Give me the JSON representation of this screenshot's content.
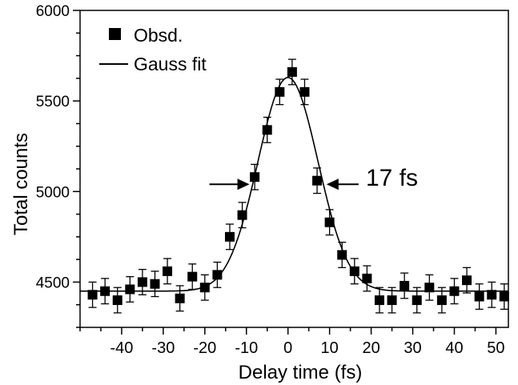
{
  "chart_data": {
    "type": "scatter",
    "xlabel": "Delay time (fs)",
    "ylabel": "Total counts",
    "xlim": [
      -50,
      53
    ],
    "ylim": [
      4250,
      6000
    ],
    "x_ticks": [
      -40,
      -30,
      -20,
      -10,
      0,
      10,
      20,
      30,
      40,
      50
    ],
    "y_ticks": [
      4500,
      5000,
      5500,
      6000
    ],
    "x_tick_labels": [
      "-40",
      "-30",
      "-20",
      "-10",
      "0",
      "10",
      "20",
      "30",
      "40",
      "50"
    ],
    "y_tick_labels": [
      "4500",
      "5000",
      "5500",
      "6000"
    ],
    "x_minor_step": 5,
    "y_minor_step": 125,
    "grid": false,
    "legend": {
      "position": "top-left",
      "entries": [
        {
          "label": "Obsd.",
          "marker": "square"
        },
        {
          "label": "Gauss fit",
          "marker": "line"
        }
      ]
    },
    "annotation": {
      "text": "17 fs",
      "type": "fwhm-arrows",
      "y": 5040,
      "left_x": -8.5,
      "right_x": 8.5
    },
    "series": [
      {
        "name": "Obsd.",
        "kind": "points",
        "error": 70,
        "color": "#000000",
        "points": [
          {
            "x": -47,
            "y": 4430
          },
          {
            "x": -44,
            "y": 4450
          },
          {
            "x": -41,
            "y": 4400
          },
          {
            "x": -38,
            "y": 4460
          },
          {
            "x": -35,
            "y": 4500
          },
          {
            "x": -32,
            "y": 4490
          },
          {
            "x": -29,
            "y": 4560
          },
          {
            "x": -26,
            "y": 4410
          },
          {
            "x": -23,
            "y": 4530
          },
          {
            "x": -20,
            "y": 4470
          },
          {
            "x": -17,
            "y": 4540
          },
          {
            "x": -14,
            "y": 4750
          },
          {
            "x": -11,
            "y": 4870
          },
          {
            "x": -8,
            "y": 5080
          },
          {
            "x": -5,
            "y": 5340
          },
          {
            "x": -2,
            "y": 5550
          },
          {
            "x": 1,
            "y": 5660
          },
          {
            "x": 4,
            "y": 5550
          },
          {
            "x": 7,
            "y": 5060
          },
          {
            "x": 10,
            "y": 4830
          },
          {
            "x": 13,
            "y": 4650
          },
          {
            "x": 16,
            "y": 4560
          },
          {
            "x": 19,
            "y": 4520
          },
          {
            "x": 22,
            "y": 4400
          },
          {
            "x": 25,
            "y": 4400
          },
          {
            "x": 28,
            "y": 4480
          },
          {
            "x": 31,
            "y": 4400
          },
          {
            "x": 34,
            "y": 4470
          },
          {
            "x": 37,
            "y": 4400
          },
          {
            "x": 40,
            "y": 4450
          },
          {
            "x": 43,
            "y": 4510
          },
          {
            "x": 46,
            "y": 4420
          },
          {
            "x": 49,
            "y": 4430
          },
          {
            "x": 52,
            "y": 4420
          }
        ]
      },
      {
        "name": "Gauss fit",
        "kind": "line",
        "color": "#000000",
        "baseline": 4450,
        "amplitude": 1180,
        "center": 0,
        "fwhm": 17
      }
    ]
  }
}
